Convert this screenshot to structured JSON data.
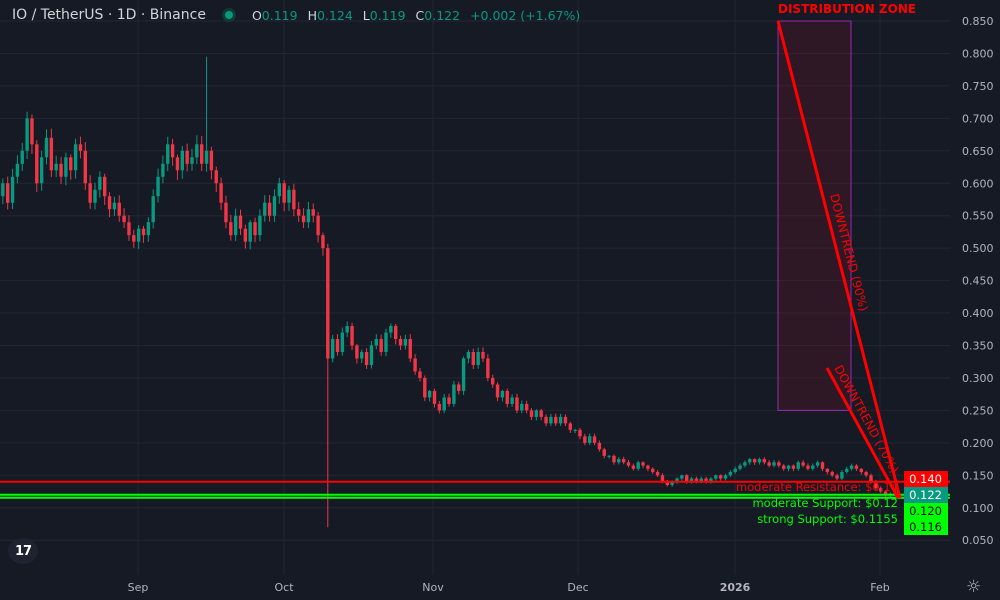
{
  "header": {
    "symbol": "IO / TetherUS · 1D · Binance",
    "status_color": "#089981",
    "open_label": "O",
    "open": "0.119",
    "high_label": "H",
    "high": "0.124",
    "low_label": "L",
    "low": "0.119",
    "close_label": "C",
    "close": "0.122",
    "change": "+0.002 (+1.67%)"
  },
  "colors": {
    "up": "#089981",
    "down": "#f23645",
    "background": "#161a25",
    "grid": "#232632",
    "annotation": "#ff0000",
    "support": "#00ff00",
    "zone_border": "#9c27b0"
  },
  "chart_data": {
    "type": "candlestick",
    "title": "",
    "ylim": [
      0.02,
      0.88
    ],
    "y_ticks": [
      "0.850",
      "0.800",
      "0.750",
      "0.700",
      "0.650",
      "0.600",
      "0.550",
      "0.500",
      "0.450",
      "0.400",
      "0.350",
      "0.300",
      "0.250",
      "0.200",
      "0.150",
      "0.100",
      "0.050"
    ],
    "x_ticks": [
      "Sep",
      "Oct",
      "Nov",
      "Dec",
      "2026",
      "Feb"
    ],
    "grid": true,
    "closes": [
      0.58,
      0.6,
      0.57,
      0.61,
      0.63,
      0.65,
      0.7,
      0.66,
      0.6,
      0.64,
      0.67,
      0.62,
      0.63,
      0.61,
      0.64,
      0.62,
      0.66,
      0.65,
      0.6,
      0.57,
      0.59,
      0.61,
      0.58,
      0.56,
      0.57,
      0.55,
      0.54,
      0.52,
      0.51,
      0.53,
      0.52,
      0.54,
      0.58,
      0.61,
      0.63,
      0.66,
      0.64,
      0.62,
      0.65,
      0.63,
      0.64,
      0.66,
      0.63,
      0.65,
      0.62,
      0.6,
      0.57,
      0.54,
      0.52,
      0.55,
      0.53,
      0.51,
      0.54,
      0.52,
      0.55,
      0.57,
      0.55,
      0.58,
      0.6,
      0.57,
      0.59,
      0.56,
      0.55,
      0.54,
      0.56,
      0.55,
      0.52,
      0.5,
      0.33,
      0.36,
      0.34,
      0.37,
      0.38,
      0.35,
      0.33,
      0.34,
      0.32,
      0.35,
      0.36,
      0.34,
      0.37,
      0.38,
      0.36,
      0.35,
      0.36,
      0.33,
      0.31,
      0.3,
      0.27,
      0.28,
      0.26,
      0.25,
      0.27,
      0.26,
      0.29,
      0.28,
      0.33,
      0.34,
      0.32,
      0.34,
      0.33,
      0.3,
      0.29,
      0.27,
      0.28,
      0.26,
      0.27,
      0.25,
      0.26,
      0.25,
      0.24,
      0.25,
      0.24,
      0.23,
      0.24,
      0.23,
      0.24,
      0.23,
      0.22,
      0.22,
      0.21,
      0.2,
      0.21,
      0.2,
      0.19,
      0.18,
      0.18,
      0.17,
      0.175,
      0.17,
      0.165,
      0.16,
      0.17,
      0.165,
      0.16,
      0.155,
      0.15,
      0.14,
      0.135,
      0.14,
      0.145,
      0.15,
      0.14,
      0.145,
      0.14,
      0.145,
      0.14,
      0.145,
      0.15,
      0.145,
      0.15,
      0.155,
      0.16,
      0.165,
      0.17,
      0.175,
      0.17,
      0.175,
      0.17,
      0.165,
      0.17,
      0.165,
      0.16,
      0.165,
      0.16,
      0.17,
      0.165,
      0.16,
      0.165,
      0.17,
      0.16,
      0.155,
      0.15,
      0.145,
      0.155,
      0.16,
      0.165,
      0.16,
      0.155,
      0.15,
      0.14,
      0.13,
      0.125,
      0.119,
      0.122
    ],
    "notable_wicks": {
      "spike_high": 0.795,
      "crash_low": 0.07
    },
    "levels": [
      {
        "label": "moderate Resistance: $0.14",
        "price": 0.14,
        "price_label": "0.140",
        "color": "#ff0000"
      },
      {
        "label": "moderate Support: $0.12",
        "price": 0.12,
        "price_label": "0.120",
        "color": "#00ff00"
      },
      {
        "label": "strong Support: $0.1155",
        "price": 0.1155,
        "price_label": "0.116",
        "color": "#00ff00"
      }
    ],
    "last_price_label": "0.122",
    "annotations": {
      "zone": {
        "label": "DISTRIBUTION ZONE",
        "top": 0.85,
        "bottom": 0.25
      },
      "trend1": {
        "label": "DOWNTREND (90%)",
        "from": 0.85,
        "to": 0.115
      },
      "trend2": {
        "label": "DOWNTREND (70%)",
        "from": 0.3,
        "to": 0.115
      }
    }
  }
}
